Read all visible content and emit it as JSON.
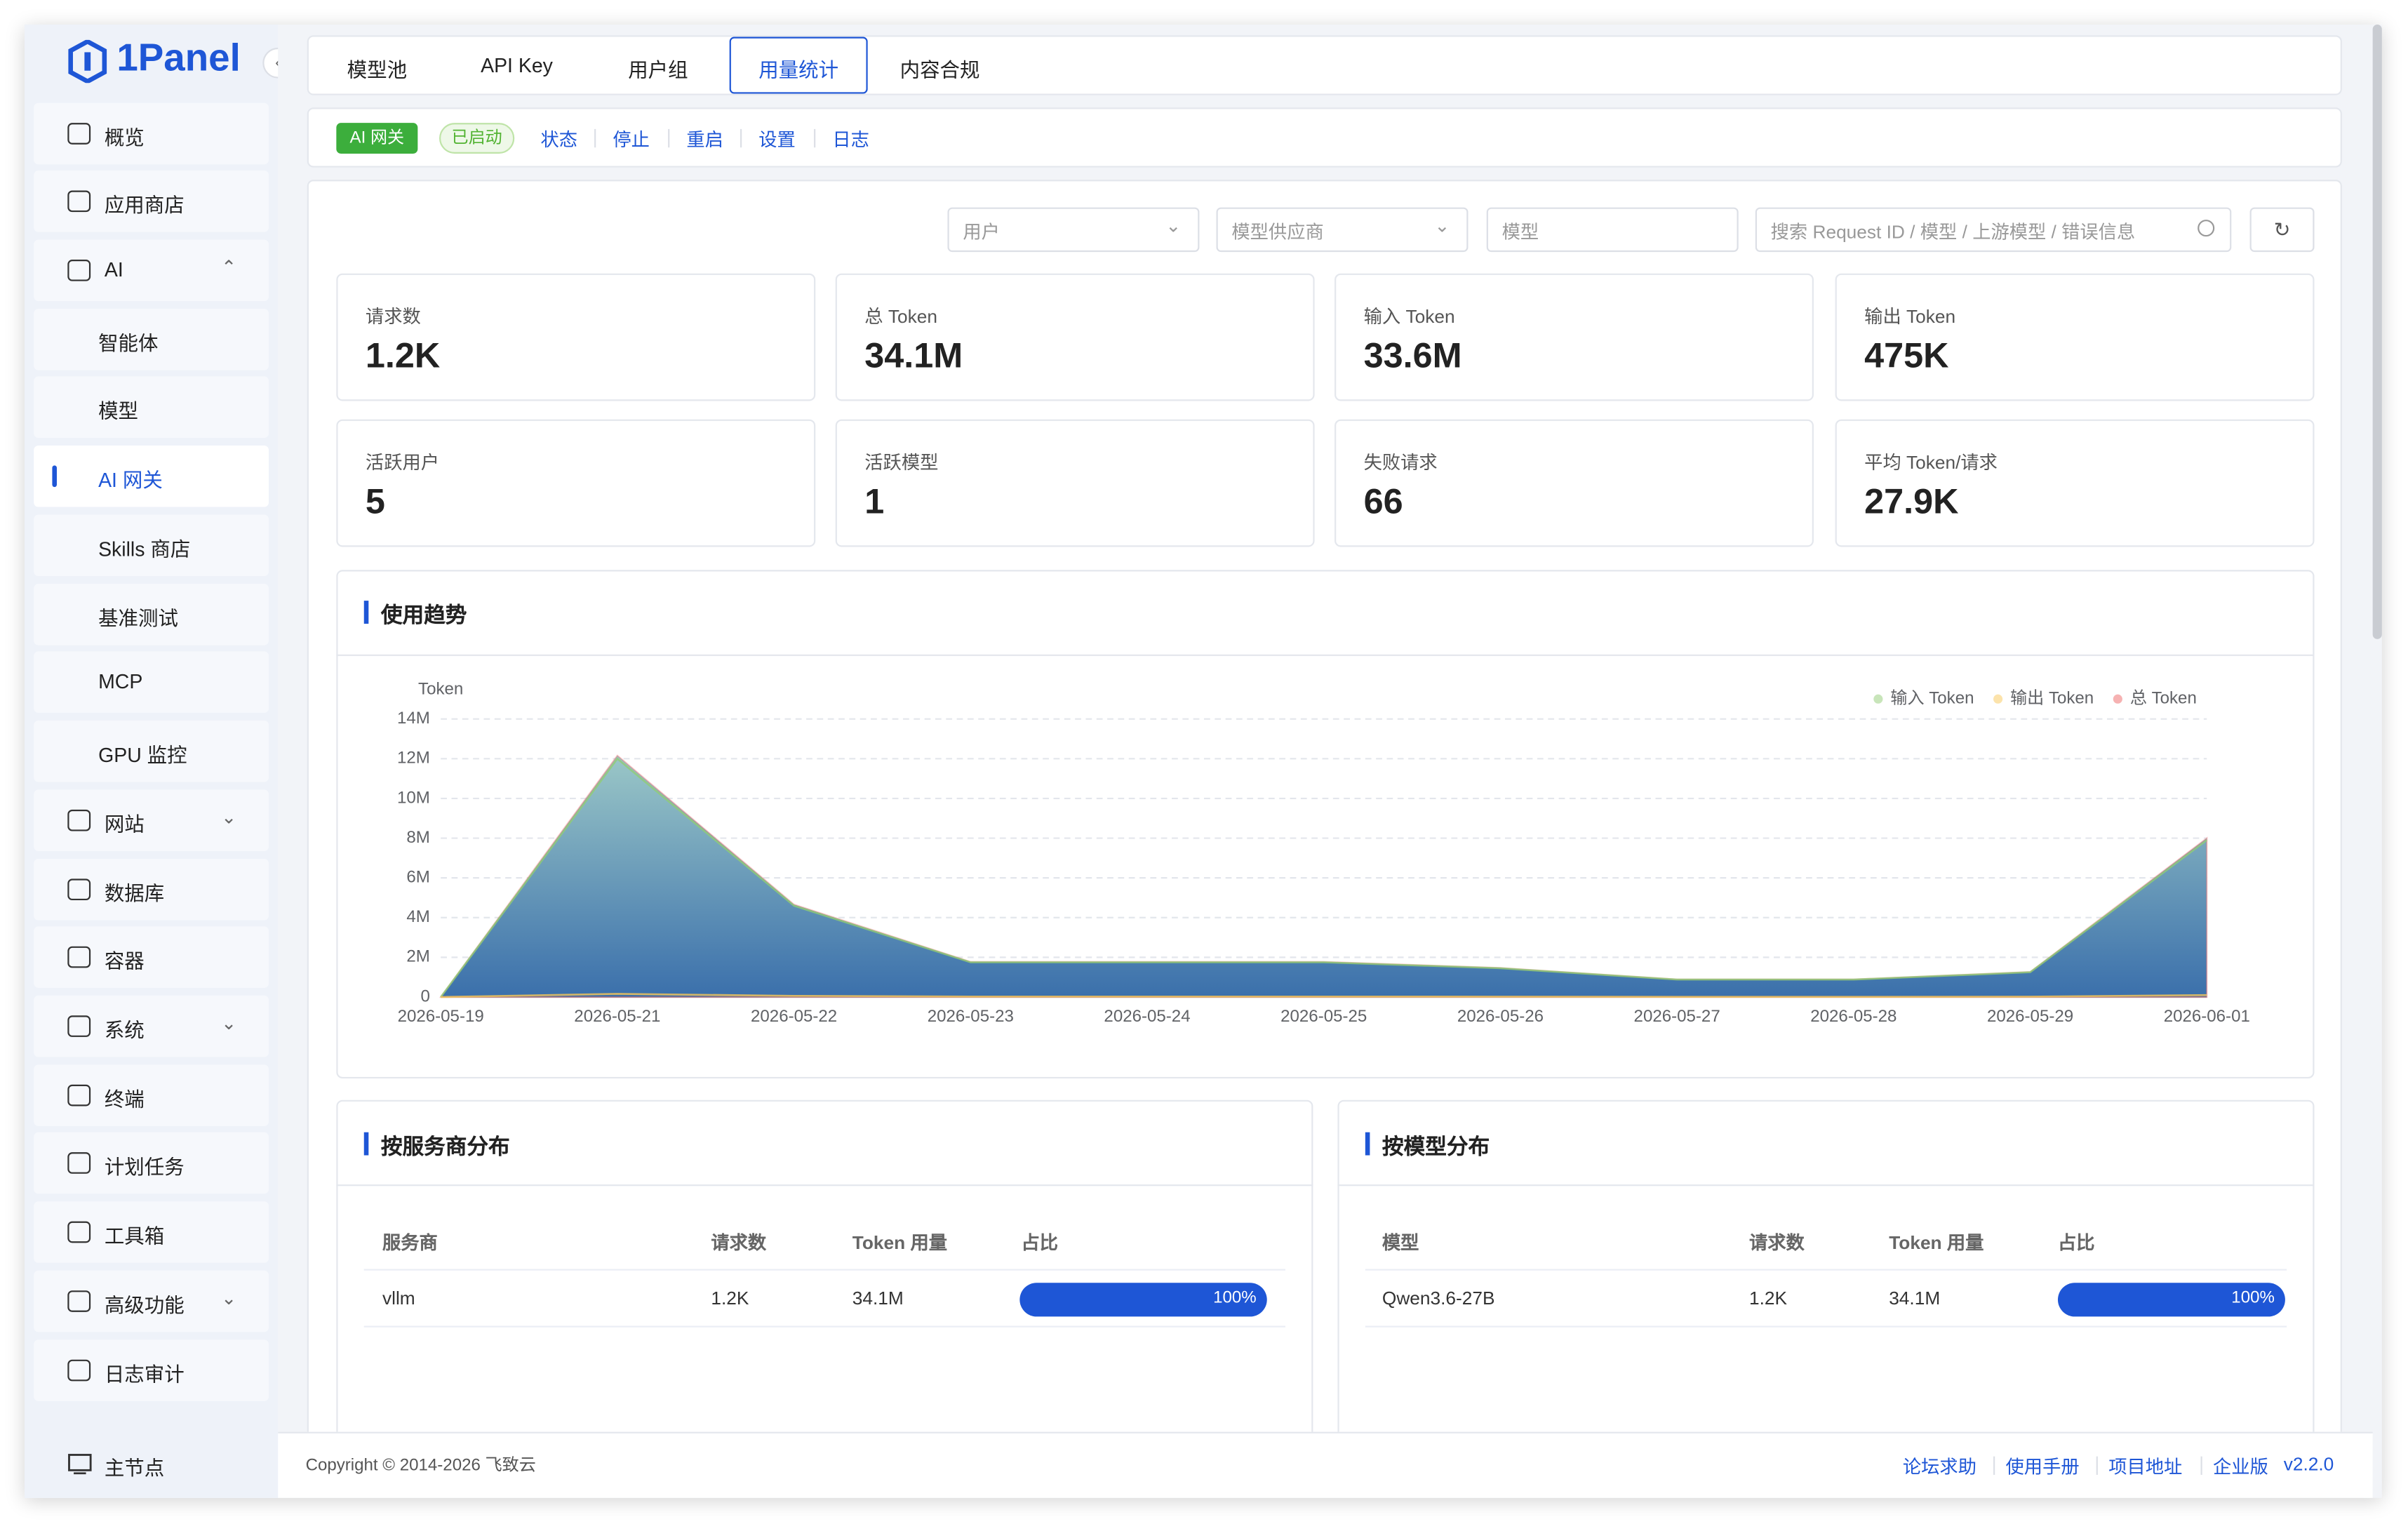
{
  "sidebar": {
    "logo": "1Panel",
    "menu": [
      "概览",
      "应用商店",
      "AI",
      "智能体",
      "模型",
      "AI 网关",
      "Skills 商店",
      "基准测试",
      "MCP",
      "GPU 监控",
      "网站",
      "数据库",
      "容器",
      "系统",
      "终端",
      "计划任务",
      "工具箱",
      "高级功能",
      "日志审计"
    ],
    "node": "主节点"
  },
  "tabs": [
    "模型池",
    "API Key",
    "用户组",
    "用量统计",
    "内容合规"
  ],
  "toolbar": {
    "tag": "AI 网关",
    "status": "已启动",
    "links": [
      "状态",
      "停止",
      "重启",
      "设置",
      "日志"
    ]
  },
  "filters": {
    "user": "用户",
    "provider": "模型供应商",
    "model": "模型",
    "search": "搜索 Request ID / 模型 / 上游模型 / 错误信息"
  },
  "stats": [
    {
      "label": "请求数",
      "value": "1.2K"
    },
    {
      "label": "总 Token",
      "value": "34.1M"
    },
    {
      "label": "输入 Token",
      "value": "33.6M"
    },
    {
      "label": "输出 Token",
      "value": "475K"
    },
    {
      "label": "活跃用户",
      "value": "5"
    },
    {
      "label": "活跃模型",
      "value": "1"
    },
    {
      "label": "失败请求",
      "value": "66"
    },
    {
      "label": "平均 Token/请求",
      "value": "27.9K"
    }
  ],
  "chart_data": {
    "type": "area",
    "title": "使用趋势",
    "y_label": "Token",
    "categories": [
      "2026-05-19",
      "2026-05-21",
      "2026-05-22",
      "2026-05-23",
      "2026-05-24",
      "2026-05-25",
      "2026-05-26",
      "2026-05-27",
      "2026-05-28",
      "2026-05-29",
      "2026-06-01"
    ],
    "series": [
      {
        "name": "输入 Token",
        "color": "#91cc75",
        "values": [
          0,
          12000000,
          4600000,
          1750000,
          1750000,
          1750000,
          1450000,
          880000,
          880000,
          1250000,
          7900000
        ]
      },
      {
        "name": "输出 Token",
        "color": "#fac858",
        "values": [
          0,
          160000,
          60000,
          25000,
          25000,
          25000,
          20000,
          12000,
          12000,
          18000,
          100000
        ]
      },
      {
        "name": "总 Token",
        "color": "#ee6666",
        "values": [
          0,
          12160000,
          4660000,
          1775000,
          1775000,
          1775000,
          1470000,
          892000,
          892000,
          1268000,
          8000000
        ]
      }
    ],
    "ylim": [
      0,
      14000000
    ],
    "yticks": [
      0,
      {
        "value": 2000000,
        "label": "2M"
      },
      {
        "value": 4000000,
        "label": "4M"
      },
      {
        "value": 6000000,
        "label": "6M"
      },
      {
        "value": 8000000,
        "label": "8M"
      },
      {
        "value": 10000000,
        "label": "10M"
      },
      {
        "value": 12000000,
        "label": "12M"
      },
      {
        "value": 14000000,
        "label": "14M"
      }
    ],
    "grid": true
  },
  "provider_table": {
    "title": "按服务商分布",
    "columns": [
      "服务商",
      "请求数",
      "Token 用量",
      "占比"
    ],
    "rows": [
      [
        "vllm",
        "1.2K",
        "34.1M",
        "100%"
      ]
    ]
  },
  "model_table": {
    "title": "按模型分布",
    "columns": [
      "模型",
      "请求数",
      "Token 用量",
      "占比"
    ],
    "rows": [
      [
        "Qwen3.6-27B",
        "1.2K",
        "34.1M",
        "100%"
      ]
    ]
  },
  "footer": {
    "copyright": "Copyright © 2014-2026 飞致云",
    "links": [
      "论坛求助",
      "使用手册",
      "项目地址",
      "企业版"
    ],
    "version": "v2.2.0"
  }
}
